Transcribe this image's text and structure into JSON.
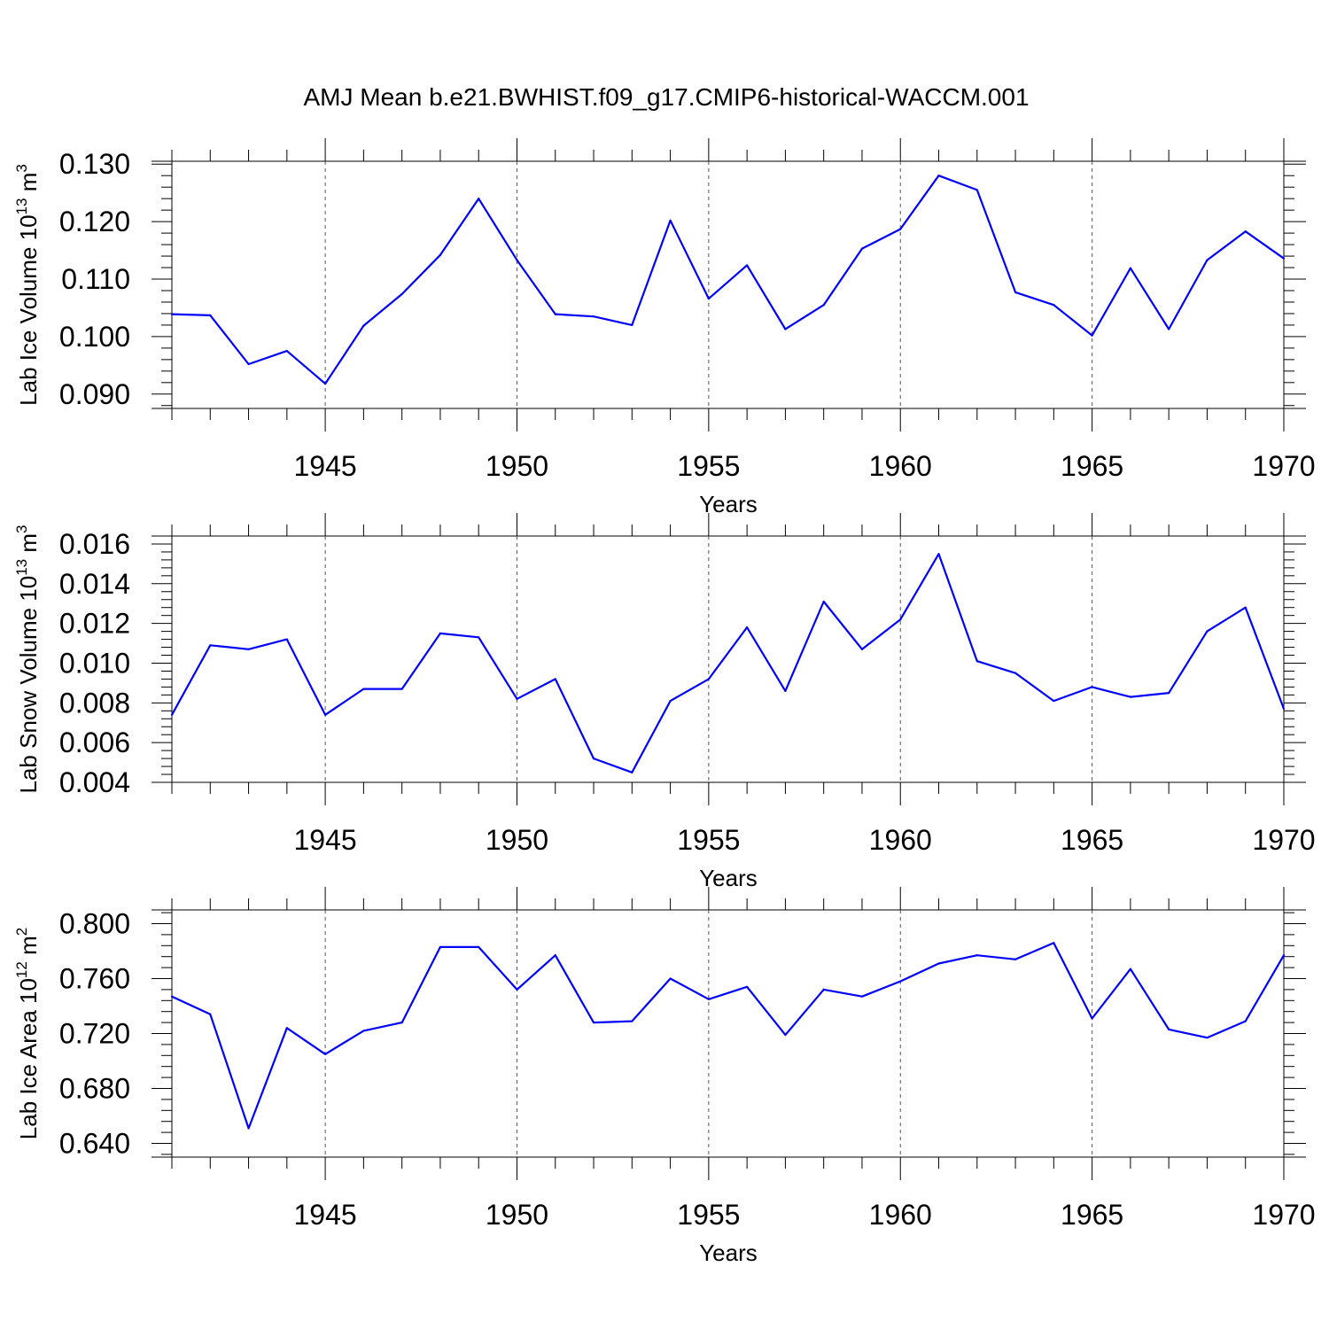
{
  "figure": {
    "title": "AMJ Mean b.e21.BWHIST.f09_g17.CMIP6-historical-WACCM.001"
  },
  "chart_data": [
    {
      "type": "line",
      "xlabel": "Years",
      "ylabel": {
        "main": "Lab Ice Volume 10",
        "exp": "13",
        "unit": " m",
        "unit_exp": "3"
      },
      "xlim": [
        1941,
        1970
      ],
      "ylim": [
        0.0875,
        0.1305
      ],
      "xticks": [
        1945,
        1950,
        1955,
        1960,
        1965,
        1970
      ],
      "xtick_labels": [
        "1945",
        "1950",
        "1955",
        "1960",
        "1965",
        "1970"
      ],
      "yticks": [
        0.09,
        0.1,
        0.11,
        0.12,
        0.13
      ],
      "ytick_labels": [
        "0.090",
        "0.100",
        "0.110",
        "0.120",
        "0.130"
      ],
      "grid": "dashed vertical lines at major x ticks",
      "line_color": "#0000ff",
      "x": [
        1941,
        1942,
        1943,
        1944,
        1945,
        1946,
        1947,
        1948,
        1949,
        1950,
        1951,
        1952,
        1953,
        1954,
        1955,
        1956,
        1957,
        1958,
        1959,
        1960,
        1961,
        1962,
        1963,
        1964,
        1965,
        1966,
        1967,
        1968,
        1969,
        1970
      ],
      "y": [
        0.1039,
        0.1037,
        0.0952,
        0.0975,
        0.0918,
        0.1019,
        0.1074,
        0.1142,
        0.124,
        0.1133,
        0.1039,
        0.1035,
        0.102,
        0.1202,
        0.1066,
        0.1124,
        0.1013,
        0.1055,
        0.1153,
        0.1187,
        0.128,
        0.1255,
        0.1077,
        0.1055,
        0.1002,
        0.1119,
        0.1013,
        0.1133,
        0.1183,
        0.1136
      ]
    },
    {
      "type": "line",
      "xlabel": "Years",
      "ylabel": {
        "main": "Lab Snow Volume 10",
        "exp": "13",
        "unit": " m",
        "unit_exp": "3"
      },
      "xlim": [
        1941,
        1970
      ],
      "ylim": [
        0.004,
        0.0164
      ],
      "xticks": [
        1945,
        1950,
        1955,
        1960,
        1965,
        1970
      ],
      "xtick_labels": [
        "1945",
        "1950",
        "1955",
        "1960",
        "1965",
        "1970"
      ],
      "yticks": [
        0.004,
        0.006,
        0.008,
        0.01,
        0.012,
        0.014,
        0.016
      ],
      "ytick_labels": [
        "0.004",
        "0.006",
        "0.008",
        "0.010",
        "0.012",
        "0.014",
        "0.016"
      ],
      "grid": "dashed vertical lines at major x ticks",
      "line_color": "#0000ff",
      "x": [
        1941,
        1942,
        1943,
        1944,
        1945,
        1946,
        1947,
        1948,
        1949,
        1950,
        1951,
        1952,
        1953,
        1954,
        1955,
        1956,
        1957,
        1958,
        1959,
        1960,
        1961,
        1962,
        1963,
        1964,
        1965,
        1966,
        1967,
        1968,
        1969,
        1970
      ],
      "y": [
        0.0074,
        0.0109,
        0.0107,
        0.0112,
        0.0074,
        0.0087,
        0.0087,
        0.0115,
        0.0113,
        0.0082,
        0.0092,
        0.0052,
        0.0045,
        0.0081,
        0.0092,
        0.0118,
        0.0086,
        0.0131,
        0.0107,
        0.0122,
        0.0155,
        0.0101,
        0.0095,
        0.0081,
        0.0088,
        0.0083,
        0.0085,
        0.0116,
        0.0128,
        0.0077
      ]
    },
    {
      "type": "line",
      "xlabel": "Years",
      "ylabel": {
        "main": "Lab Ice Area 10",
        "exp": "12",
        "unit": " m",
        "unit_exp": "2"
      },
      "xlim": [
        1941,
        1970
      ],
      "ylim": [
        0.63,
        0.81
      ],
      "xticks": [
        1945,
        1950,
        1955,
        1960,
        1965,
        1970
      ],
      "xtick_labels": [
        "1945",
        "1950",
        "1955",
        "1960",
        "1965",
        "1970"
      ],
      "yticks": [
        0.64,
        0.68,
        0.72,
        0.76,
        0.8
      ],
      "ytick_labels": [
        "0.640",
        "0.680",
        "0.720",
        "0.760",
        "0.800"
      ],
      "grid": "dashed vertical lines at major x ticks",
      "line_color": "#0000ff",
      "x": [
        1941,
        1942,
        1943,
        1944,
        1945,
        1946,
        1947,
        1948,
        1949,
        1950,
        1951,
        1952,
        1953,
        1954,
        1955,
        1956,
        1957,
        1958,
        1959,
        1960,
        1961,
        1962,
        1963,
        1964,
        1965,
        1966,
        1967,
        1968,
        1969,
        1970
      ],
      "y": [
        0.747,
        0.734,
        0.651,
        0.724,
        0.705,
        0.722,
        0.728,
        0.783,
        0.783,
        0.752,
        0.777,
        0.728,
        0.729,
        0.76,
        0.745,
        0.754,
        0.719,
        0.752,
        0.747,
        0.758,
        0.771,
        0.777,
        0.774,
        0.786,
        0.731,
        0.767,
        0.723,
        0.717,
        0.729,
        0.777
      ]
    }
  ]
}
